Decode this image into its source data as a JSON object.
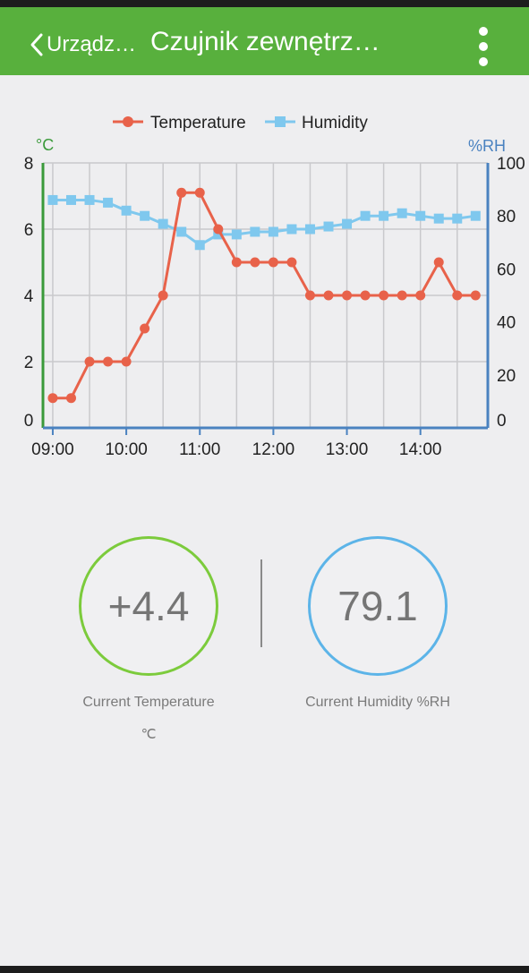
{
  "header": {
    "back_label": "Urządz…",
    "title": "Czujnik zewnętrz…"
  },
  "colors": {
    "header_bg": "#58b03d",
    "temperature": "#e8624a",
    "humidity": "#7fc8ee",
    "left_axis": "#3a9a3a",
    "right_axis": "#4a82c0",
    "temp_ring": "#7ccb3c",
    "hum_ring": "#5cb4e8"
  },
  "chart_data": {
    "type": "line",
    "legend": [
      "Temperature",
      "Humidity"
    ],
    "legend_position": "top",
    "y_left_unit": "°C",
    "y_right_unit": "%RH",
    "y_left_ticks": [
      "0",
      "2",
      "4",
      "6",
      "8"
    ],
    "y_right_ticks": [
      "0",
      "20",
      "40",
      "60",
      "80",
      "100"
    ],
    "x_ticks": [
      "09:00",
      "10:00",
      "11:00",
      "12:00",
      "13:00",
      "14:00"
    ],
    "ylim_left": [
      0,
      8
    ],
    "ylim_right": [
      0,
      100
    ],
    "xlim_minutes_after_0900": [
      -8,
      355
    ],
    "grid": true,
    "series": [
      {
        "name": "Temperature",
        "axis": "left",
        "x": [
          "09:00",
          "09:15",
          "09:30",
          "09:45",
          "10:00",
          "10:15",
          "10:30",
          "10:45",
          "11:00",
          "11:15",
          "11:30",
          "11:45",
          "12:00",
          "12:15",
          "12:30",
          "12:45",
          "13:00",
          "13:15",
          "13:30",
          "13:45",
          "14:00",
          "14:15",
          "14:30",
          "14:45"
        ],
        "values": [
          0.9,
          0.9,
          2.0,
          2.0,
          2.0,
          3.0,
          4.0,
          7.1,
          7.1,
          6.0,
          5.0,
          5.0,
          5.0,
          5.0,
          4.0,
          4.0,
          4.0,
          4.0,
          4.0,
          4.0,
          4.0,
          5.0,
          4.0,
          4.0
        ]
      },
      {
        "name": "Humidity",
        "axis": "right",
        "x": [
          "09:00",
          "09:15",
          "09:30",
          "09:45",
          "10:00",
          "10:15",
          "10:30",
          "10:45",
          "11:00",
          "11:15",
          "11:30",
          "11:45",
          "12:00",
          "12:15",
          "12:30",
          "12:45",
          "13:00",
          "13:15",
          "13:30",
          "13:45",
          "14:00",
          "14:15",
          "14:30",
          "14:45"
        ],
        "values": [
          86,
          86,
          86,
          85,
          82,
          80,
          77,
          74,
          69,
          73,
          73,
          74,
          74,
          75,
          75,
          76,
          77,
          80,
          80,
          81,
          80,
          79,
          79,
          80
        ]
      }
    ]
  },
  "current": {
    "temperature_value": "+4.4",
    "temperature_label": "Current Temperature",
    "temperature_unit": "℃",
    "humidity_value": "79.1",
    "humidity_label": "Current Humidity %RH"
  }
}
